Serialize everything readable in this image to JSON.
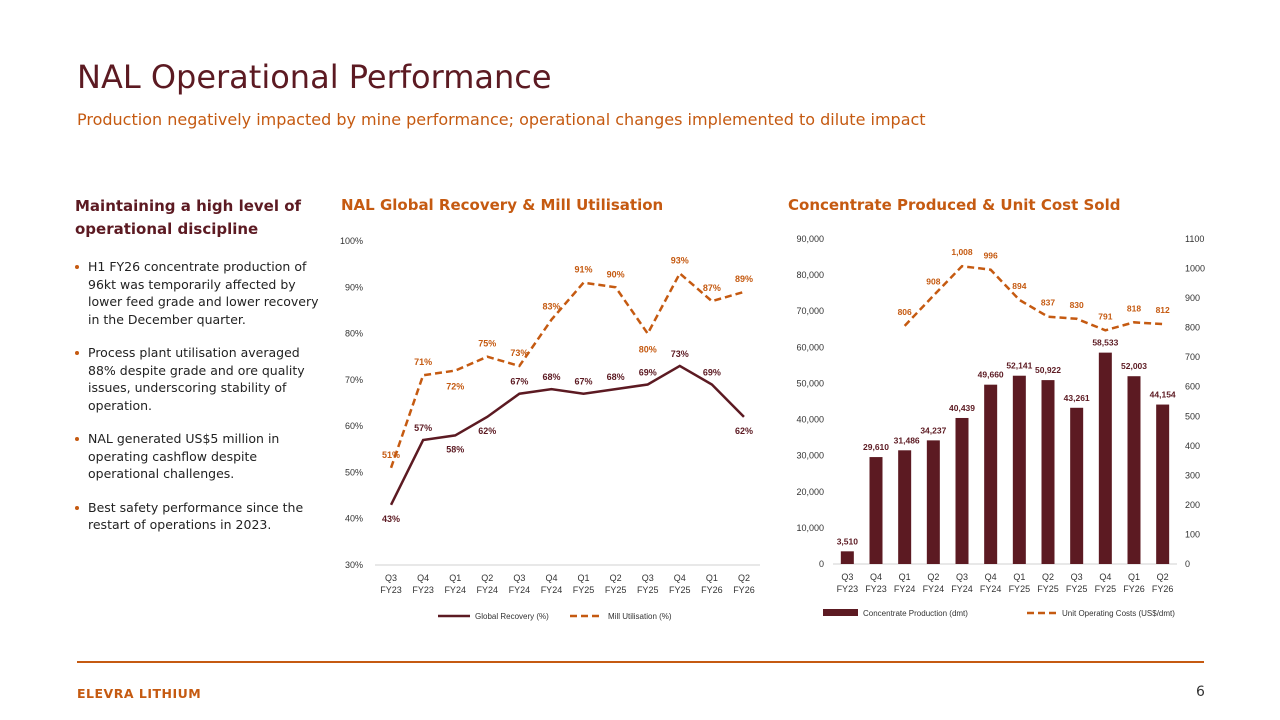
{
  "slide": {
    "title": "NAL Operational Performance",
    "subtitle": "Production negatively impacted by mine performance; operational changes implemented to dilute impact",
    "page_number": "6",
    "footer_brand": "ELEVRA LITHIUM"
  },
  "left_panel": {
    "heading": "Maintaining a high level of operational discipline",
    "bullets": [
      "H1 FY26 concentrate production of 96kt was temporarily affected by lower feed grade and lower recovery in the December quarter.",
      "Process plant utilisation averaged 88% despite grade and ore quality issues, underscoring stability of operation.",
      "NAL generated US$5 million in operating cashflow despite operational challenges.",
      "Best safety performance since the restart of operations in 2023."
    ]
  },
  "colors": {
    "dark_red": "#5c1a22",
    "orange": "#c55a11",
    "bar": "#5c1a22"
  },
  "chart_data": [
    {
      "type": "line",
      "title": "NAL Global Recovery & Mill Utilisation",
      "categories": [
        [
          "Q3",
          "FY23"
        ],
        [
          "Q4",
          "FY23"
        ],
        [
          "Q1",
          "FY24"
        ],
        [
          "Q2",
          "FY24"
        ],
        [
          "Q3",
          "FY24"
        ],
        [
          "Q4",
          "FY24"
        ],
        [
          "Q1",
          "FY25"
        ],
        [
          "Q2",
          "FY25"
        ],
        [
          "Q3",
          "FY25"
        ],
        [
          "Q4",
          "FY25"
        ],
        [
          "Q1",
          "FY26"
        ],
        [
          "Q2",
          "FY26"
        ]
      ],
      "ylim": [
        30,
        100
      ],
      "yticks": [
        "30%",
        "40%",
        "50%",
        "60%",
        "70%",
        "80%",
        "90%",
        "100%"
      ],
      "grid": false,
      "legend_position": "bottom",
      "series": [
        {
          "name": "Global Recovery (%)",
          "style": "solid",
          "color": "#5c1a22",
          "values": [
            43,
            57,
            58,
            62,
            67,
            68,
            67,
            68,
            69,
            73,
            69,
            62
          ],
          "labels": [
            "43%",
            "57%",
            "58%",
            "62%",
            "67%",
            "68%",
            "67%",
            "68%",
            "69%",
            "73%",
            "69%",
            "62%"
          ]
        },
        {
          "name": "Mill Utilisation (%)",
          "style": "dashed",
          "color": "#c55a11",
          "values": [
            51,
            71,
            72,
            75,
            73,
            83,
            91,
            90,
            80,
            93,
            87,
            89
          ],
          "labels": [
            "51%",
            "71%",
            "72%",
            "75%",
            "73%",
            "83%",
            "91%",
            "90%",
            "80%",
            "93%",
            "87%",
            "89%"
          ]
        }
      ]
    },
    {
      "type": "bar",
      "title": "Concentrate Produced & Unit Cost Sold",
      "categories": [
        [
          "Q3",
          "FY23"
        ],
        [
          "Q4",
          "FY23"
        ],
        [
          "Q1",
          "FY24"
        ],
        [
          "Q2",
          "FY24"
        ],
        [
          "Q3",
          "FY24"
        ],
        [
          "Q4",
          "FY24"
        ],
        [
          "Q1",
          "FY25"
        ],
        [
          "Q2",
          "FY25"
        ],
        [
          "Q3",
          "FY25"
        ],
        [
          "Q4",
          "FY25"
        ],
        [
          "Q1",
          "FY26"
        ],
        [
          "Q2",
          "FY26"
        ]
      ],
      "ylim_left": [
        0,
        90000
      ],
      "yticks_left": [
        "0",
        "10,000",
        "20,000",
        "30,000",
        "40,000",
        "50,000",
        "60,000",
        "70,000",
        "80,000",
        "90,000"
      ],
      "ylim_right": [
        0,
        1100
      ],
      "yticks_right": [
        "0",
        "100",
        "200",
        "300",
        "400",
        "500",
        "600",
        "700",
        "800",
        "900",
        "1000",
        "1100"
      ],
      "grid": false,
      "legend_position": "bottom",
      "series": [
        {
          "name": "Concentrate Production (dmt)",
          "type": "bar",
          "axis": "left",
          "color": "#5c1a22",
          "values": [
            3510,
            29610,
            31486,
            34237,
            40439,
            49660,
            52141,
            50922,
            43261,
            58533,
            52003,
            44154
          ],
          "labels": [
            "3,510",
            "29,610",
            "31,486",
            "34,237",
            "40,439",
            "49,660",
            "52,141",
            "50,922",
            "43,261",
            "58,533",
            "52,003",
            "44,154"
          ]
        },
        {
          "name": "Unit Operating Costs (US$/dmt)",
          "type": "line",
          "style": "dashed",
          "axis": "right",
          "color": "#c55a11",
          "values": [
            null,
            null,
            806,
            908,
            1008,
            996,
            894,
            837,
            830,
            791,
            818,
            812
          ],
          "labels": [
            "",
            "",
            "806",
            "908",
            "1,008",
            "996",
            "894",
            "837",
            "830",
            "791",
            "818",
            "812"
          ]
        }
      ]
    }
  ]
}
